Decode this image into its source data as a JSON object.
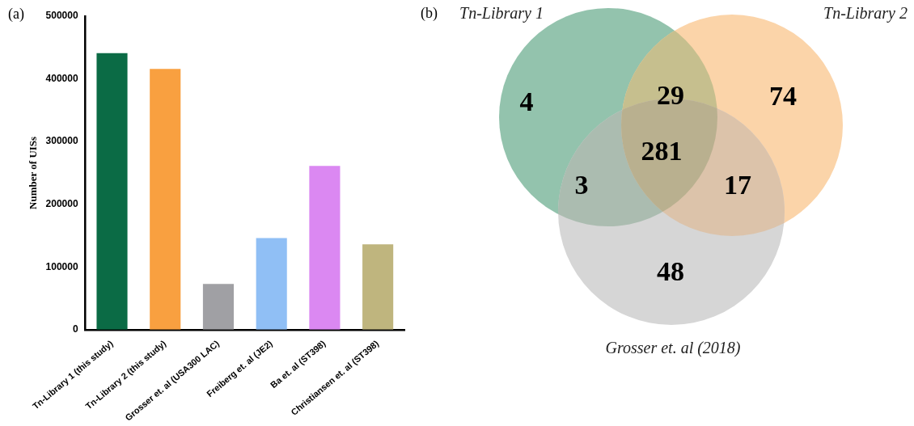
{
  "chart_data": [
    {
      "type": "bar",
      "title": "(a)",
      "ylabel": "Number of UISs",
      "categories": [
        "Tn-Library 1 (this study)",
        "Tn-Library 2 (this study)",
        "Grosser et. al (USA300 LAC)",
        "Freiberg et. al (JE2)",
        "Ba et. al (ST398)",
        "Christiansen et. al (ST398)"
      ],
      "values": [
        441000,
        416000,
        73000,
        146000,
        261000,
        136000
      ],
      "colors": [
        "#0b6b45",
        "#f9a040",
        "#a0a0a4",
        "#90bff5",
        "#db88f2",
        "#bfb57e"
      ],
      "ylim": [
        0,
        500000
      ],
      "yticks": [
        0,
        100000,
        200000,
        300000,
        400000,
        500000
      ],
      "legend": false
    },
    {
      "type": "other",
      "title": "(b)",
      "annotations": [
        "Tn-Library 1",
        "Tn-Library 2",
        "Grosser et. al (2018)"
      ],
      "categories": [
        null,
        null,
        null,
        null,
        null,
        null,
        null
      ],
      "values": [
        4,
        29,
        74,
        281,
        3,
        17,
        48
      ],
      "colors": [
        "#93c3ad",
        "#c6bf8e",
        "#fbd4a9",
        "#b9b08f",
        "#abbcb0",
        "#dcc3aa",
        "#d6d6d6"
      ],
      "data_labels": true
    }
  ]
}
